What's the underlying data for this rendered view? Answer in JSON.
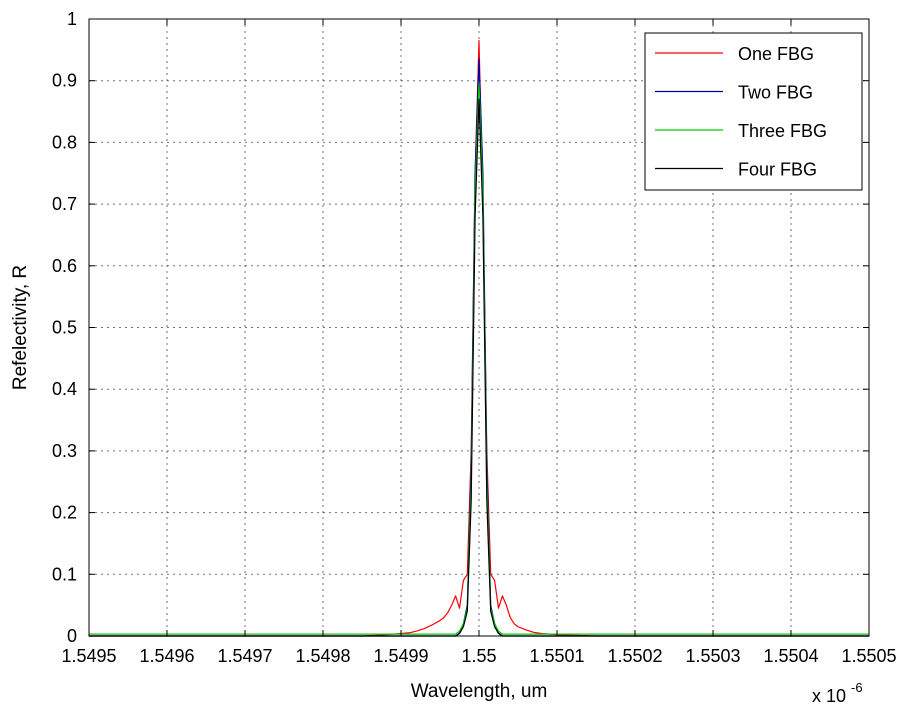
{
  "chart_data": {
    "type": "line",
    "xlabel": "Wavelength, um",
    "ylabel": "Refelectivity, R",
    "x_multiplier_label": "x 10",
    "x_multiplier_exponent": "-6",
    "xlim": [
      1.5495,
      1.5505
    ],
    "ylim": [
      0,
      1
    ],
    "grid": true,
    "legend_position": "top-right",
    "x_ticks": [
      "1.5495",
      "1.5496",
      "1.5497",
      "1.5498",
      "1.5499",
      "1.55",
      "1.5501",
      "1.5502",
      "1.5503",
      "1.5504",
      "1.5505"
    ],
    "y_ticks": [
      "0",
      "0.1",
      "0.2",
      "0.3",
      "0.4",
      "0.5",
      "0.6",
      "0.7",
      "0.8",
      "0.9",
      "1"
    ],
    "series": [
      {
        "name": "One FBG",
        "color": "#ff0000",
        "x": [
          1.5495,
          1.54985,
          1.54988,
          1.5499,
          1.54991,
          1.54992,
          1.54993,
          1.54994,
          1.54995,
          1.549955,
          1.54996,
          1.549965,
          1.54997,
          1.549975,
          1.54998,
          1.549985,
          1.54999,
          1.549995,
          1.55,
          1.550005,
          1.55001,
          1.550015,
          1.55002,
          1.550025,
          1.55003,
          1.550035,
          1.55004,
          1.550045,
          1.55005,
          1.55006,
          1.55007,
          1.55008,
          1.55009,
          1.5501,
          1.55015,
          1.5505
        ],
        "y": [
          0.0,
          0.0,
          0.002,
          0.004,
          0.005,
          0.008,
          0.012,
          0.018,
          0.025,
          0.03,
          0.038,
          0.05,
          0.065,
          0.045,
          0.09,
          0.1,
          0.3,
          0.75,
          0.965,
          0.7,
          0.3,
          0.1,
          0.09,
          0.045,
          0.065,
          0.05,
          0.03,
          0.02,
          0.015,
          0.01,
          0.006,
          0.004,
          0.003,
          0.002,
          0.0,
          0.0
        ]
      },
      {
        "name": "Two FBG",
        "color": "#0000a0",
        "x": [
          1.5495,
          1.54997,
          1.549975,
          1.54998,
          1.549985,
          1.54999,
          1.549995,
          1.55,
          1.550005,
          1.55001,
          1.550015,
          1.55002,
          1.550025,
          1.55003,
          1.5505
        ],
        "y": [
          0.0,
          0.0,
          0.005,
          0.02,
          0.05,
          0.28,
          0.75,
          0.935,
          0.75,
          0.28,
          0.05,
          0.02,
          0.005,
          0.0,
          0.0
        ]
      },
      {
        "name": "Three FBG",
        "color": "#00cc00",
        "x": [
          1.5495,
          1.54997,
          1.549975,
          1.54998,
          1.549985,
          1.54999,
          1.549995,
          1.55,
          1.550005,
          1.55001,
          1.550015,
          1.55002,
          1.550025,
          1.55003,
          1.5505
        ],
        "y": [
          0.003,
          0.003,
          0.008,
          0.02,
          0.045,
          0.25,
          0.72,
          0.895,
          0.72,
          0.25,
          0.045,
          0.02,
          0.008,
          0.003,
          0.003
        ]
      },
      {
        "name": "Four FBG",
        "color": "#000000",
        "x": [
          1.5495,
          1.54997,
          1.549975,
          1.54998,
          1.549985,
          1.54999,
          1.549995,
          1.55,
          1.550005,
          1.55001,
          1.550015,
          1.55002,
          1.550025,
          1.55003,
          1.5505
        ],
        "y": [
          0.0,
          0.0,
          0.004,
          0.015,
          0.04,
          0.22,
          0.68,
          0.87,
          0.68,
          0.22,
          0.04,
          0.015,
          0.004,
          0.0,
          0.0
        ]
      }
    ]
  }
}
